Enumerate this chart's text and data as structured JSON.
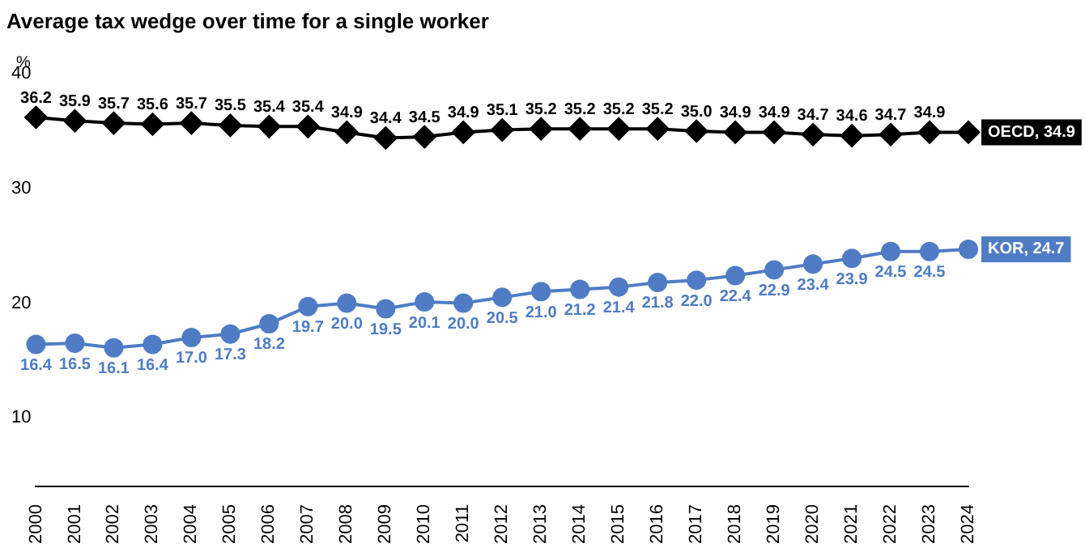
{
  "chart_data": {
    "type": "line",
    "title": "Average tax wedge over time for a single worker",
    "ylabel": "%",
    "categories": [
      "2000",
      "2001",
      "2002",
      "2003",
      "2004",
      "2005",
      "2006",
      "2007",
      "2008",
      "2009",
      "2010",
      "2011",
      "2012",
      "2013",
      "2014",
      "2015",
      "2016",
      "2017",
      "2018",
      "2019",
      "2020",
      "2021",
      "2022",
      "2023",
      "2024"
    ],
    "series": [
      {
        "color": "#000000",
        "marker": "diamond",
        "values": [
          36.2,
          35.9,
          35.7,
          35.6,
          35.7,
          35.5,
          35.4,
          35.4,
          34.9,
          34.4,
          34.5,
          34.9,
          35.1,
          35.2,
          35.2,
          35.2,
          35.2,
          35.0,
          34.9,
          34.9,
          34.7,
          34.6,
          34.7,
          34.9,
          34.9
        ],
        "value_labels": [
          "36.2",
          "35.9",
          "35.7",
          "35.6",
          "35.7",
          "35.5",
          "35.4",
          "35.4",
          "34.9",
          "34.4",
          "34.5",
          "34.9",
          "35.1",
          "35.2",
          "35.2",
          "35.2",
          "35.2",
          "35.0",
          "34.9",
          "34.9",
          "34.7",
          "34.6",
          "34.7",
          "34.9",
          null
        ]
      },
      {
        "color": "#4f7cc4",
        "marker": "circle",
        "values": [
          16.4,
          16.5,
          16.1,
          16.4,
          17.0,
          17.3,
          18.2,
          19.7,
          20.0,
          19.5,
          20.1,
          20.0,
          20.5,
          21.0,
          21.2,
          21.4,
          21.8,
          22.0,
          22.4,
          22.9,
          23.4,
          23.9,
          24.5,
          24.5,
          24.7
        ],
        "value_labels": [
          "16.4",
          "16.5",
          "16.1",
          "16.4",
          "17.0",
          "17.3",
          "18.2",
          "19.7",
          "20.0",
          "19.5",
          "20.1",
          "20.0",
          "20.5",
          "21.0",
          "21.2",
          "21.4",
          "21.8",
          "22.0",
          "22.4",
          "22.9",
          "23.4",
          "23.9",
          "24.5",
          "24.5",
          null
        ]
      }
    ],
    "annotations": [
      {
        "text": "OECD, 34.9",
        "x": "2024",
        "y": 34.9
      },
      {
        "text": "KOR, 24.7",
        "x": "2024",
        "y": 24.7
      }
    ],
    "ylim": [
      4,
      40
    ],
    "yticks": [
      10,
      20,
      30,
      40
    ],
    "grid": false,
    "legend": false,
    "line_style": "solid"
  }
}
